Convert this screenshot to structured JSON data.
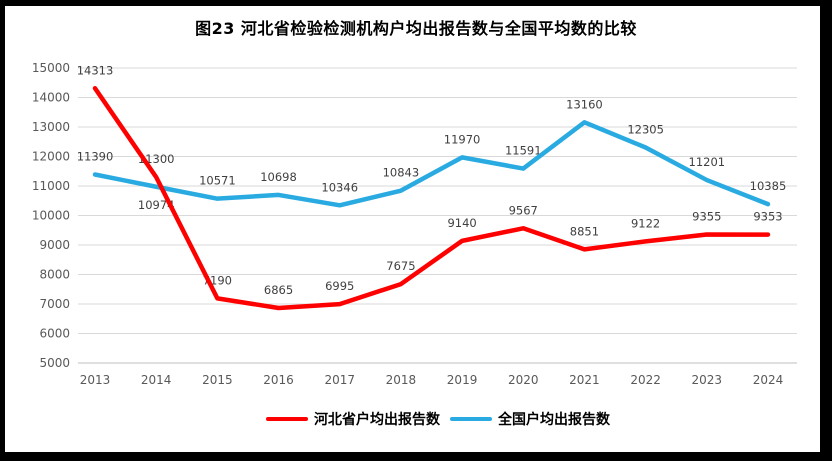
{
  "title": "图23  河北省检验检测机构户均出报告数与全国平均数的比较",
  "colors": {
    "hebei_red": "#FF0000",
    "national_blue": "#29ABE2",
    "gridline": "#D9D9D9",
    "axis_line": "#BFBFBF",
    "data_label_text": "#404040",
    "axis_text": "#595959",
    "frame": "#000000",
    "background": "#FFFFFF",
    "title_text": "#000000"
  },
  "chart_data": {
    "type": "line",
    "title": "图23  河北省检验检测机构户均出报告数与全国平均数的比较",
    "categories": [
      "2013",
      "2014",
      "2015",
      "2016",
      "2017",
      "2018",
      "2019",
      "2020",
      "2021",
      "2022",
      "2023",
      "2024"
    ],
    "series": [
      {
        "name": "河北省户均出报告数",
        "color": "#FF0000",
        "values": [
          14313,
          11300,
          7190,
          6865,
          6995,
          7675,
          9140,
          9567,
          8851,
          9122,
          9355,
          9353
        ],
        "label_positions": [
          "above",
          "above",
          "above",
          "above",
          "above",
          "above",
          "above",
          "above",
          "above",
          "above",
          "above",
          "above"
        ]
      },
      {
        "name": "全国户均出报告数",
        "color": "#29ABE2",
        "values": [
          11390,
          10974,
          10571,
          10698,
          10346,
          10843,
          11970,
          11591,
          13160,
          12305,
          11201,
          10385
        ],
        "label_positions": [
          "above",
          "below",
          "above",
          "above",
          "above",
          "above",
          "above",
          "above",
          "above",
          "above",
          "above",
          "above"
        ]
      }
    ],
    "ylim": [
      5000,
      15000
    ],
    "ytick_step": 1000,
    "ytick_labels": [
      "5000",
      "6000",
      "7000",
      "8000",
      "9000",
      "10000",
      "11000",
      "12000",
      "13000",
      "14000",
      "15000"
    ],
    "grid": true,
    "legend_position": "bottom",
    "xlabel": "",
    "ylabel": ""
  }
}
